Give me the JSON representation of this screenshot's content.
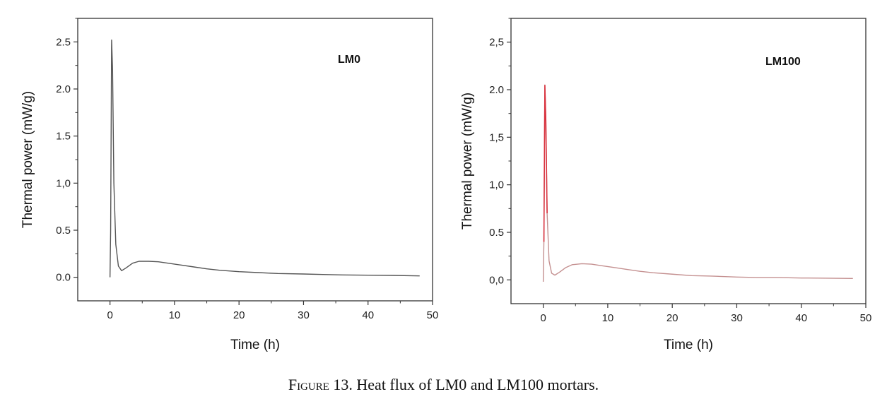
{
  "caption": {
    "figure_label": "Figure 13.",
    "text": "Heat flux of LM0 and LM100 mortars."
  },
  "chart_data": [
    {
      "type": "line",
      "label": "LM0",
      "xlabel": "Time (h)",
      "ylabel": "Thermal power (mW/g)",
      "xlim": [
        -5,
        50
      ],
      "ylim": [
        -0.25,
        2.75
      ],
      "xticks": [
        0,
        10,
        20,
        30,
        40,
        50
      ],
      "xtick_labels": [
        "0",
        "10",
        "20",
        "30",
        "40",
        "50"
      ],
      "yticks": [
        0,
        0.5,
        1,
        1.5,
        2,
        2.5
      ],
      "ytick_labels": [
        "0.0",
        "0.5",
        "1,0",
        "1.5",
        "2.0",
        "2.5"
      ],
      "grid": false,
      "line_color": "#555555",
      "series": [
        {
          "x": [
            0.0,
            0.1,
            0.25,
            0.4,
            0.6,
            0.9,
            1.3,
            1.8,
            2.5,
            3.5,
            4.5,
            6,
            7.5,
            9,
            11,
            13,
            15,
            17,
            20,
            23,
            26,
            30,
            33,
            36,
            40,
            44,
            48
          ],
          "y": [
            0.0,
            0.5,
            2.52,
            2.2,
            1.0,
            0.35,
            0.12,
            0.07,
            0.1,
            0.15,
            0.17,
            0.17,
            0.165,
            0.15,
            0.13,
            0.11,
            0.09,
            0.075,
            0.06,
            0.05,
            0.04,
            0.035,
            0.03,
            0.025,
            0.022,
            0.02,
            0.015
          ]
        }
      ]
    },
    {
      "type": "line",
      "label": "LM100",
      "xlabel": "Time (h)",
      "ylabel": "Thermal power (mW/g)",
      "xlim": [
        -5,
        50
      ],
      "ylim": [
        -0.25,
        2.75
      ],
      "xticks": [
        0,
        10,
        20,
        30,
        40,
        50
      ],
      "xtick_labels": [
        "0",
        "10",
        "20",
        "30",
        "40",
        "50"
      ],
      "yticks": [
        0,
        0.5,
        1,
        1.5,
        2,
        2.5
      ],
      "ytick_labels": [
        "0,0",
        "0.5",
        "1,0",
        "1,5",
        "2.0",
        "2,5"
      ],
      "grid": false,
      "line_color": "#c49090",
      "spike_color": "#d9333f",
      "series": [
        {
          "x": [
            0.0,
            0.1,
            0.25,
            0.4,
            0.6,
            0.9,
            1.3,
            1.8,
            2.5,
            3.5,
            4.5,
            6,
            7.5,
            9,
            11,
            13,
            15,
            17,
            20,
            23,
            26,
            30,
            33,
            36,
            40,
            44,
            48
          ],
          "y": [
            -0.02,
            0.4,
            2.05,
            1.67,
            0.7,
            0.2,
            0.07,
            0.05,
            0.08,
            0.13,
            0.16,
            0.17,
            0.165,
            0.15,
            0.13,
            0.11,
            0.09,
            0.075,
            0.06,
            0.045,
            0.04,
            0.03,
            0.025,
            0.025,
            0.02,
            0.018,
            0.015
          ]
        }
      ]
    }
  ]
}
